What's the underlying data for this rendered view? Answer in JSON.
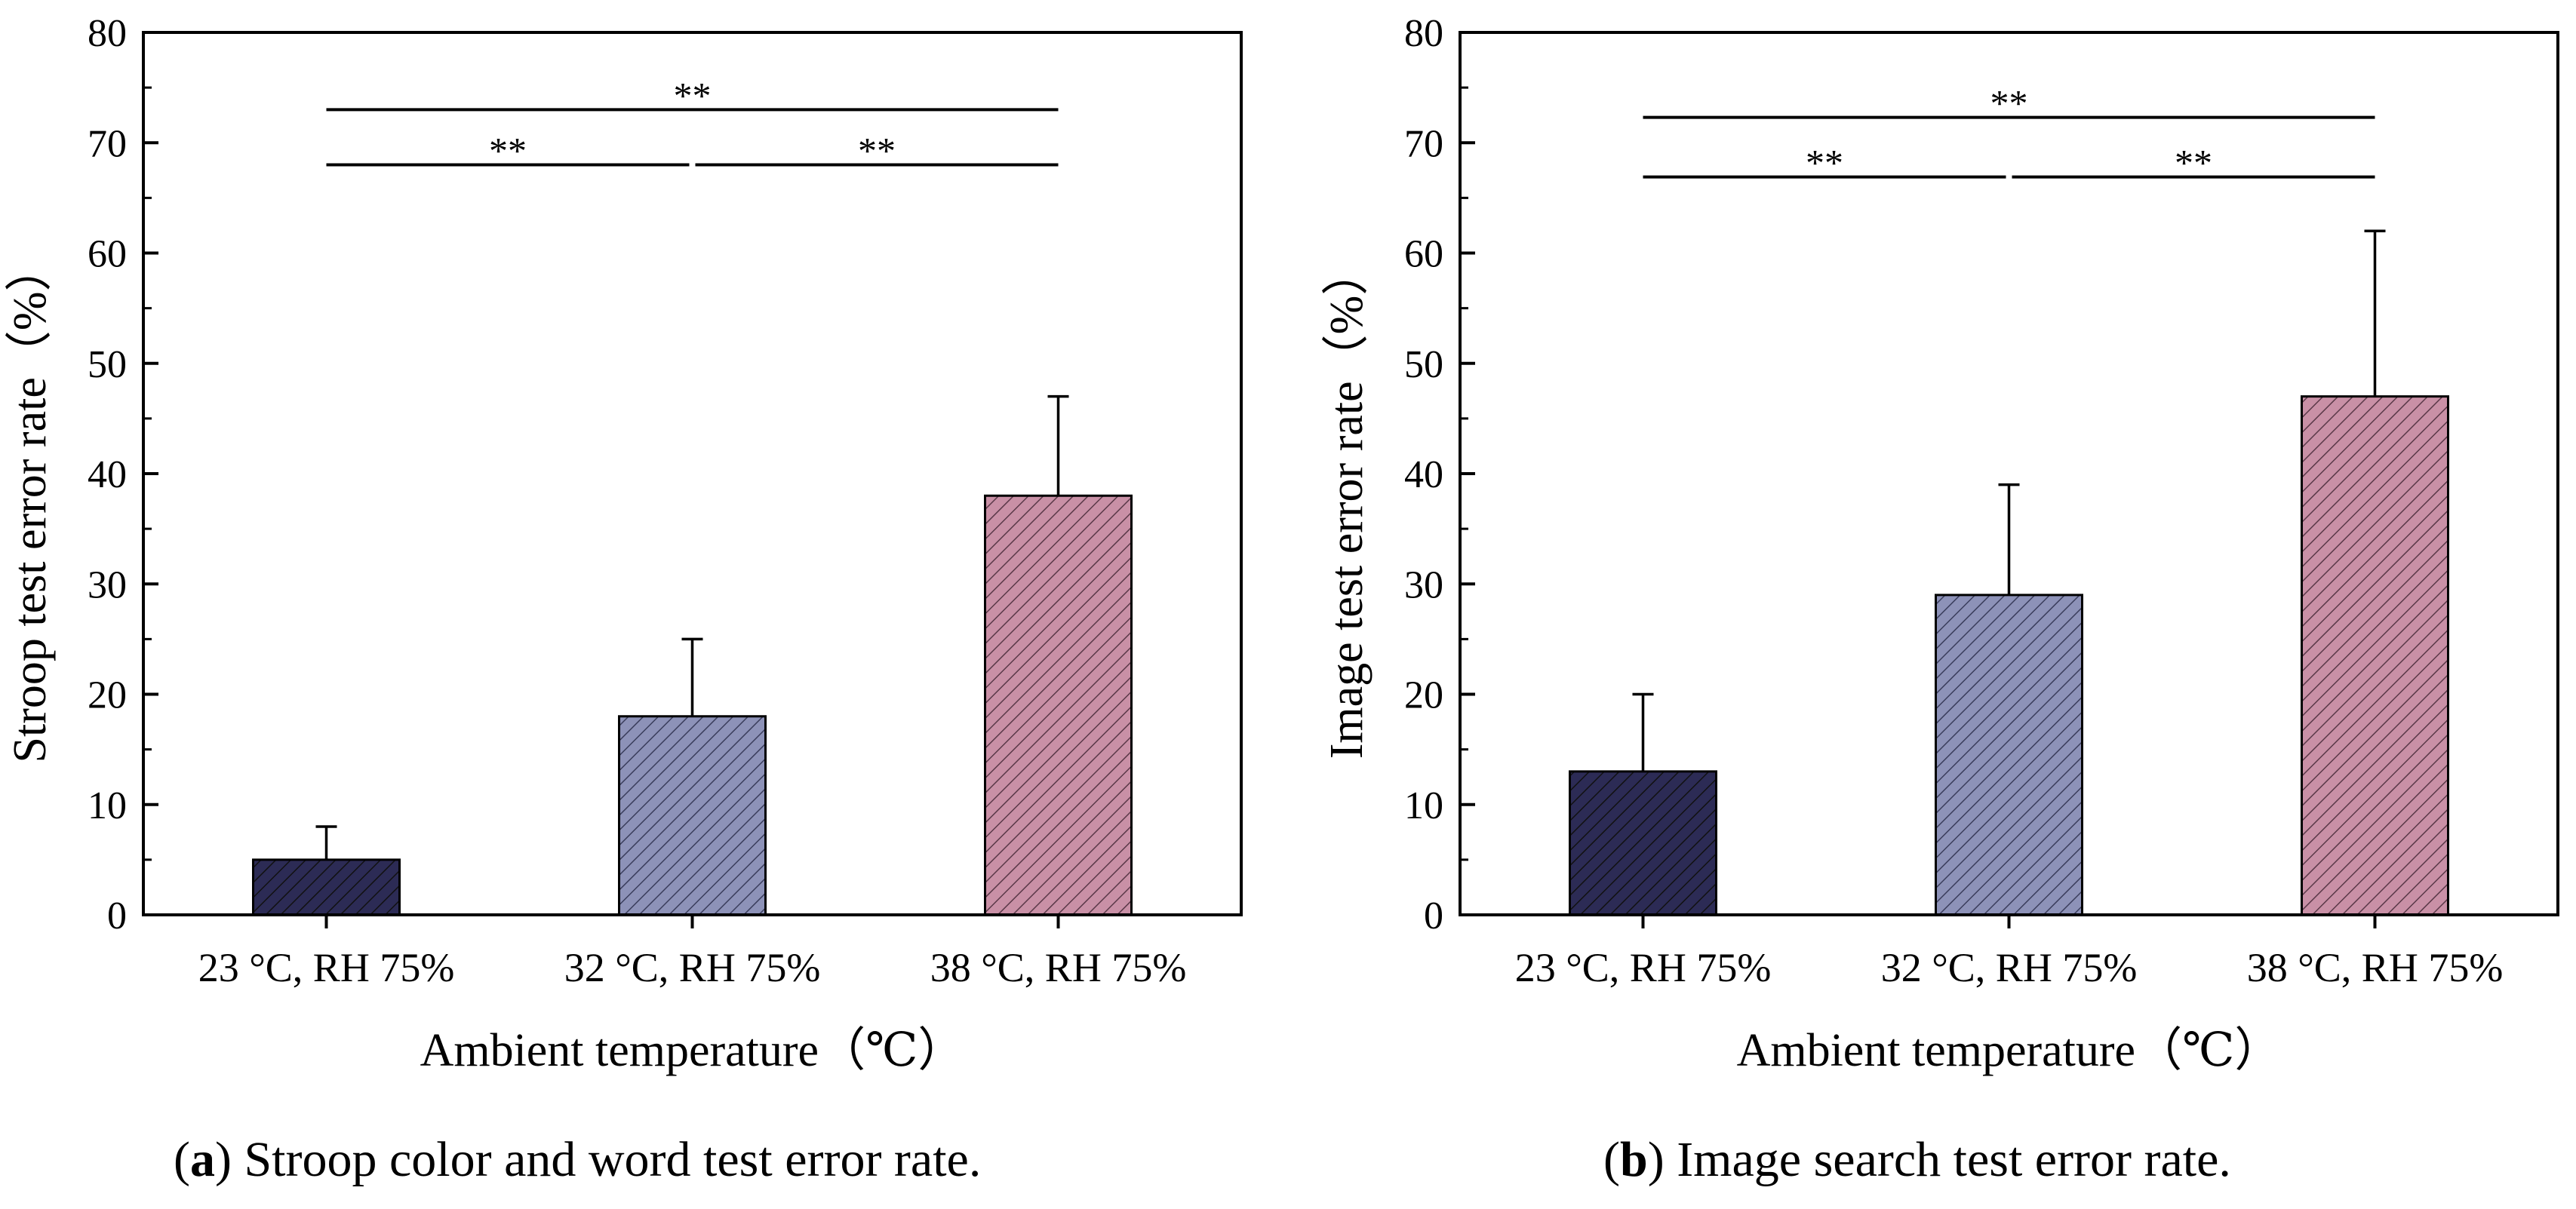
{
  "chart_data": [
    {
      "type": "bar",
      "panel": "a",
      "caption_label": "a",
      "caption_text": "Stroop color and word test error rate.",
      "categories": [
        "23 °C, RH 75%",
        "32 °C, RH 75%",
        "38 °C, RH 75%"
      ],
      "values": [
        5,
        18,
        38
      ],
      "error_upper": [
        8,
        25,
        47
      ],
      "colors": [
        "#2c2b55",
        "#8d92b8",
        "#c990a6"
      ],
      "xlabel": "Ambient temperature（℃）",
      "ylabel": "Stroop test error rate（%）",
      "ylim": [
        0,
        80
      ],
      "yticks": [
        0,
        10,
        20,
        30,
        40,
        50,
        60,
        70,
        80
      ],
      "significance": [
        {
          "from": 0,
          "to": 2,
          "y": 73,
          "label": "**"
        },
        {
          "from": 0,
          "to": 1,
          "y": 68,
          "label": "**"
        },
        {
          "from": 1,
          "to": 2,
          "y": 68,
          "label": "**"
        }
      ]
    },
    {
      "type": "bar",
      "panel": "b",
      "caption_label": "b",
      "caption_text": "Image search test error rate.",
      "categories": [
        "23 °C, RH 75%",
        "32 °C, RH 75%",
        "38 °C, RH 75%"
      ],
      "values": [
        13,
        29,
        47
      ],
      "error_upper": [
        20,
        39,
        62
      ],
      "colors": [
        "#2c2b55",
        "#8d92b8",
        "#c990a6"
      ],
      "xlabel": "Ambient temperature（℃）",
      "ylabel": "Image test error rate（%）",
      "ylim": [
        0,
        80
      ],
      "yticks": [
        0,
        10,
        20,
        30,
        40,
        50,
        60,
        70,
        80
      ],
      "significance": [
        {
          "from": 0,
          "to": 2,
          "y": 72.3,
          "label": "**"
        },
        {
          "from": 0,
          "to": 1,
          "y": 66.9,
          "label": "**"
        },
        {
          "from": 1,
          "to": 2,
          "y": 66.9,
          "label": "**"
        }
      ]
    }
  ]
}
